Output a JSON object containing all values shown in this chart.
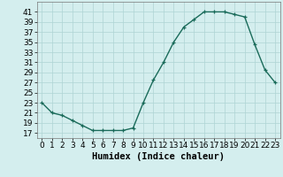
{
  "x": [
    0,
    1,
    2,
    3,
    4,
    5,
    6,
    7,
    8,
    9,
    10,
    11,
    12,
    13,
    14,
    15,
    16,
    17,
    18,
    19,
    20,
    21,
    22,
    23
  ],
  "y": [
    23,
    21,
    20.5,
    19.5,
    18.5,
    17.5,
    17.5,
    17.5,
    17.5,
    18,
    23,
    27.5,
    31,
    35,
    38,
    39.5,
    41,
    41,
    41,
    40.5,
    40,
    34.5,
    29.5,
    27
  ],
  "line_color": "#1a6b5a",
  "marker_color": "#1a6b5a",
  "bg_color": "#d4eeee",
  "grid_color": "#aed4d4",
  "xlabel": "Humidex (Indice chaleur)",
  "xlim": [
    -0.5,
    23.5
  ],
  "ylim": [
    16,
    43
  ],
  "yticks": [
    17,
    19,
    21,
    23,
    25,
    27,
    29,
    31,
    33,
    35,
    37,
    39,
    41
  ],
  "xticks": [
    0,
    1,
    2,
    3,
    4,
    5,
    6,
    7,
    8,
    9,
    10,
    11,
    12,
    13,
    14,
    15,
    16,
    17,
    18,
    19,
    20,
    21,
    22,
    23
  ],
  "xlabel_fontsize": 7.5,
  "tick_fontsize": 6.5,
  "marker_size": 3.5,
  "line_width": 1.0
}
